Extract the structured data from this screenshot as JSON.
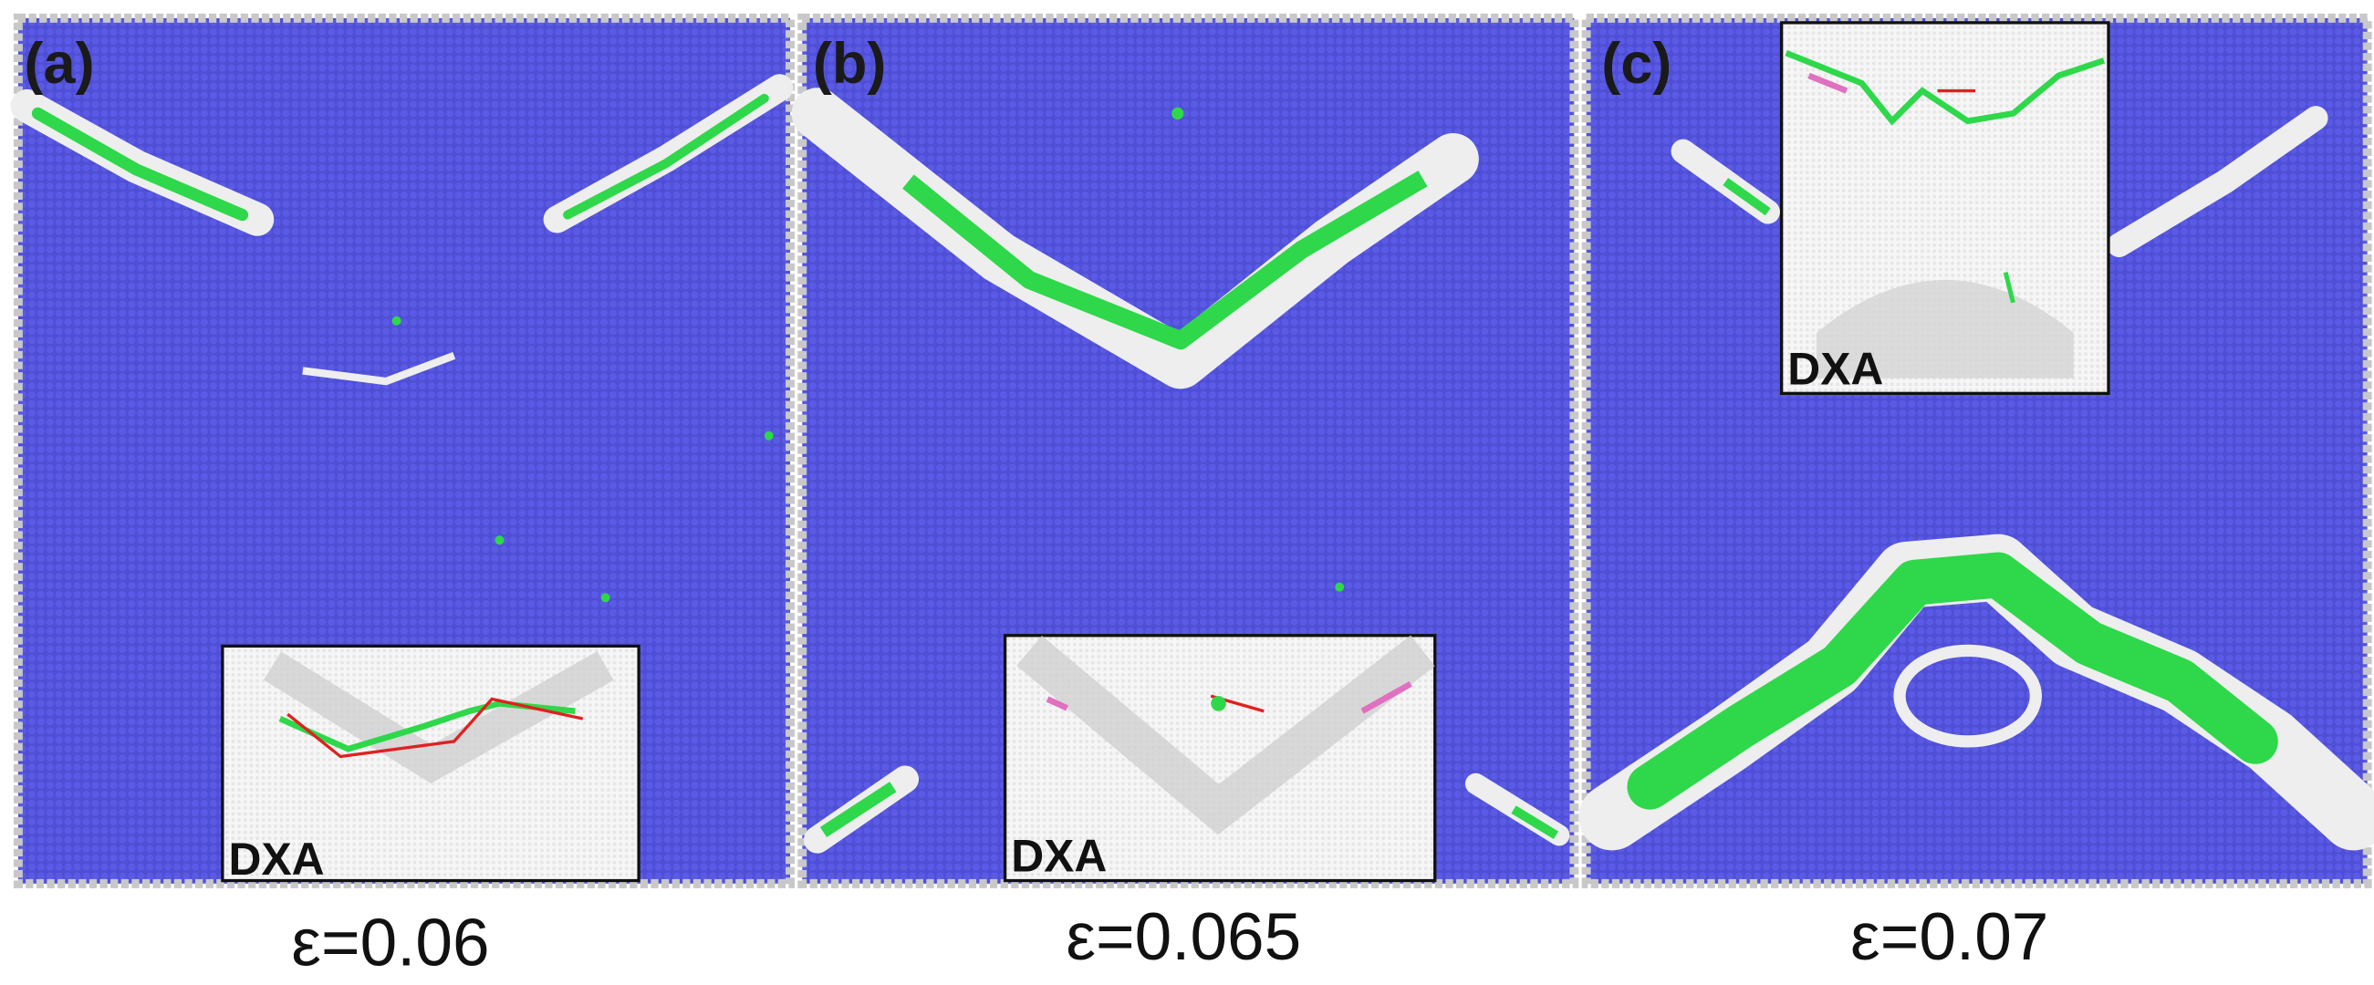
{
  "panels": [
    {
      "label": "(a)",
      "inset_label": "DXA",
      "caption": "ε=0.06"
    },
    {
      "label": "(b)",
      "inset_label": "DXA",
      "caption": "ε=0.065"
    },
    {
      "label": "(c)",
      "inset_label": "DXA",
      "caption": "ε=0.07"
    }
  ]
}
